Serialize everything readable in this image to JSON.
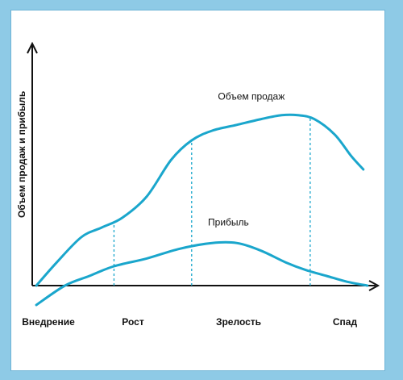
{
  "chart_data": {
    "type": "line",
    "title": "",
    "ylabel": "Объем продаж и прибыль",
    "xlabel": "",
    "stages": [
      "Внедрение",
      "Рост",
      "Зрелость",
      "Спад"
    ],
    "stage_boundaries": [
      1,
      2,
      3
    ],
    "xlim": [
      0,
      4.2
    ],
    "ylim": [
      -0.2,
      1.0
    ],
    "series": [
      {
        "name": "Объем продаж",
        "x": [
          0.05,
          0.3,
          0.6,
          0.85,
          1.1,
          1.4,
          1.7,
          1.95,
          2.2,
          2.5,
          2.8,
          3.05,
          3.25,
          3.45,
          3.7,
          3.9,
          4.05
        ],
        "y": [
          0.0,
          0.12,
          0.25,
          0.3,
          0.35,
          0.46,
          0.65,
          0.75,
          0.8,
          0.83,
          0.86,
          0.88,
          0.88,
          0.86,
          0.78,
          0.67,
          0.6
        ]
      },
      {
        "name": "Прибыль",
        "x": [
          0.05,
          0.4,
          0.7,
          1.0,
          1.4,
          1.8,
          2.2,
          2.5,
          2.8,
          3.1,
          3.35,
          3.6,
          3.85,
          4.1
        ],
        "y": [
          -0.1,
          0.0,
          0.05,
          0.1,
          0.14,
          0.19,
          0.22,
          0.22,
          0.18,
          0.12,
          0.08,
          0.05,
          0.02,
          0.0
        ]
      }
    ],
    "grid": false,
    "colors": {
      "line": "#1aa6cc",
      "axis": "#111111",
      "background": "#ffffff",
      "border": "#8ecae6"
    }
  }
}
